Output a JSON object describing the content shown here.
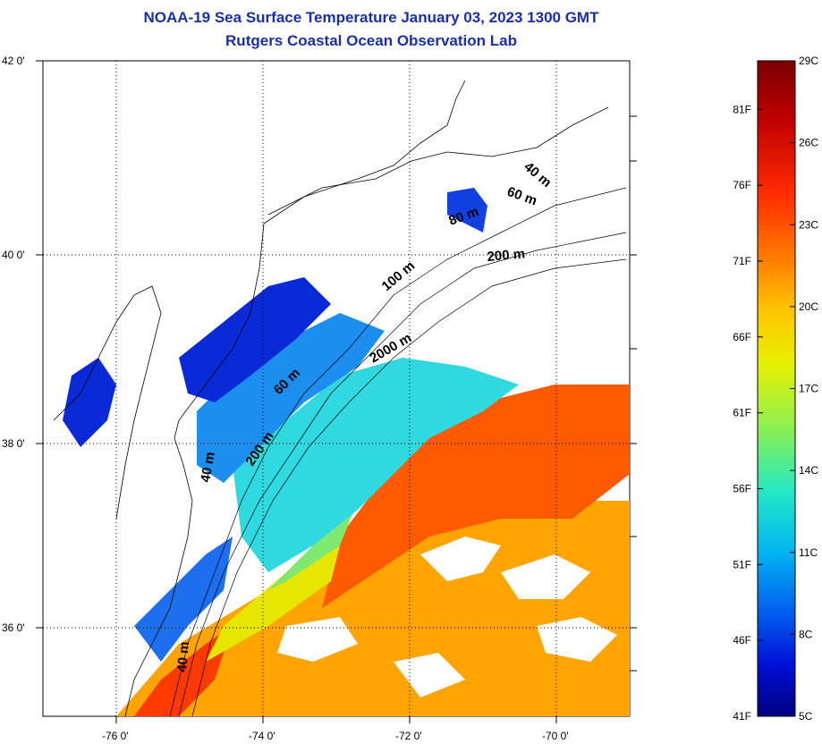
{
  "title_line1": "NOAA-19 Sea Surface Temperature January 03, 2023 1300 GMT",
  "title_line2": "Rutgers Coastal Ocean Observation Lab",
  "lat_labels": [
    "42 0'",
    "40 0'",
    "38 0'",
    "36 0'"
  ],
  "lon_labels": [
    "-76 0'",
    "-74 0'",
    "-72 0'",
    "-70 0'"
  ],
  "depth_labels": [
    "40 m",
    "60 m",
    "80 m",
    "200 m",
    "100 m",
    "2000 m",
    "60 m",
    "200 m",
    "40 m",
    "40 m"
  ],
  "colorbar": {
    "celsius": [
      "29C",
      "26C",
      "23C",
      "20C",
      "17C",
      "14C",
      "11C",
      "8C",
      "5C"
    ],
    "fahrenheit": [
      "81F",
      "76F",
      "71F",
      "66F",
      "61F",
      "56F",
      "51F",
      "46F",
      "41F"
    ],
    "colors": [
      "#7a0000",
      "#c00000",
      "#ff2a00",
      "#ff7a00",
      "#ffc400",
      "#e8f000",
      "#8cf050",
      "#20e8c8",
      "#00b4f0",
      "#0060f0",
      "#0010d8",
      "#000080"
    ]
  }
}
